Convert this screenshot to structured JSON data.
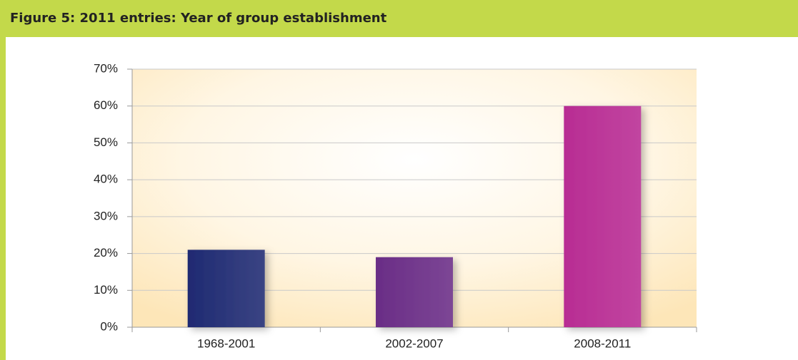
{
  "chart_data": {
    "type": "bar",
    "figure_label": "Figure 5:",
    "title": "2011 entries: Year of group establishment",
    "categories": [
      "1968-2001",
      "2002-2007",
      "2008-2011"
    ],
    "values": [
      21,
      19,
      60
    ],
    "colors": [
      "#1f2a72",
      "#6a2d86",
      "#b82c93"
    ],
    "ylim": [
      0,
      70
    ],
    "yticks": [
      {
        "value": 0,
        "label": "0%"
      },
      {
        "value": 10,
        "label": "10%"
      },
      {
        "value": 20,
        "label": "20%"
      },
      {
        "value": 30,
        "label": "30%"
      },
      {
        "value": 40,
        "label": "40%"
      },
      {
        "value": 50,
        "label": "50%"
      },
      {
        "value": 60,
        "label": "60%"
      },
      {
        "value": 70,
        "label": "70%"
      }
    ],
    "grid": true
  }
}
